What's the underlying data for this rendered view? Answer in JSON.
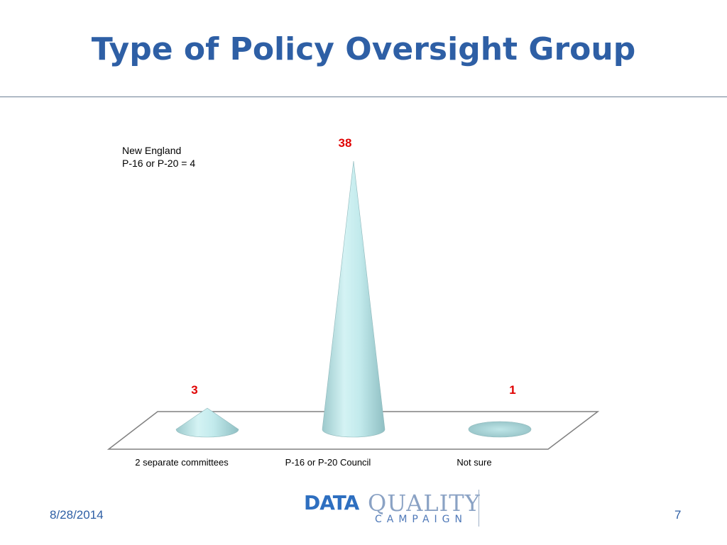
{
  "slide": {
    "title": "Type of Policy Oversight Group",
    "date": "8/28/2014",
    "page_number": "7"
  },
  "annotation": {
    "line1": "New England",
    "line2": "P-16 or P-20 = 4"
  },
  "logo": {
    "word1": "DATA",
    "word2": "QUALITY",
    "word3": "CAMPAIGN"
  },
  "colors": {
    "title": "#2e5fa5",
    "value_label": "#e00000",
    "cone": "#bfe8ea",
    "floor_line": "#808080"
  },
  "chart_data": {
    "type": "bar",
    "style": "3d-cone",
    "categories": [
      "2 separate committees",
      "P-16 or P-20 Council",
      "Not sure"
    ],
    "values": [
      3,
      38,
      1
    ],
    "data_labels": [
      "3",
      "38",
      "1"
    ],
    "grid": false,
    "legend": "none"
  }
}
